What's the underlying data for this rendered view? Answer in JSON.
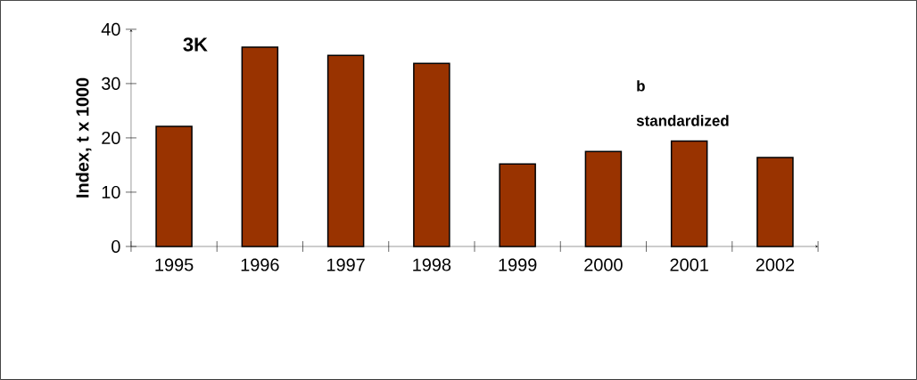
{
  "chart_data": {
    "type": "bar",
    "ylabel": "Index, t x 1000",
    "annotations": [
      "3K",
      "b",
      "standardized"
    ],
    "categories": [
      "1995",
      "1996",
      "1997",
      "1998",
      "1999",
      "2000",
      "2001",
      "2002"
    ],
    "values": [
      22.1,
      36.7,
      35.2,
      33.7,
      15.2,
      17.5,
      19.4,
      16.4
    ],
    "color": "#993300",
    "ylim": [
      0,
      40
    ],
    "yticks": [
      0,
      10,
      20,
      30,
      40
    ],
    "grid": false
  }
}
